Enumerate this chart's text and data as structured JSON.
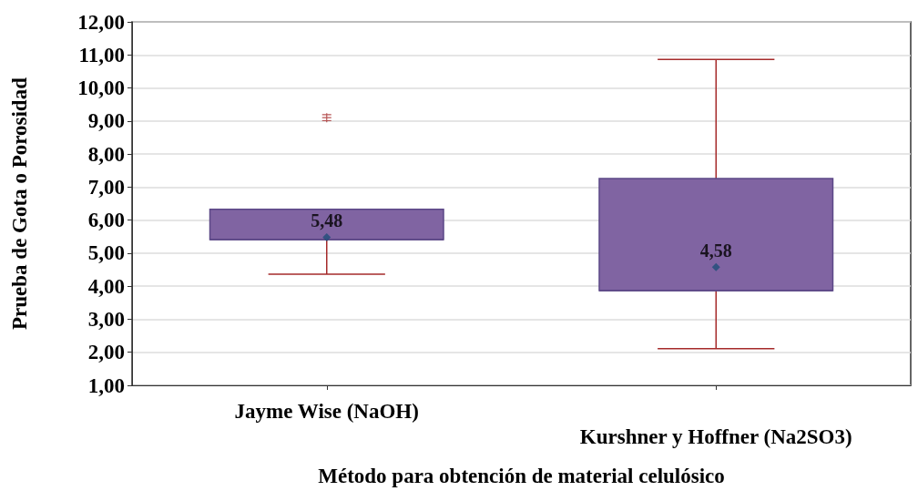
{
  "chart_data": {
    "type": "box",
    "xlabel": "Método para obtención de material celulósico",
    "ylabel": "Prueba de Gota o Porosidad",
    "categories": [
      "Jayme Wise (NaOH)",
      "Kurshner y Hoffner (Na2SO3)"
    ],
    "boxes": [
      {
        "low": 4.36,
        "q1": 5.41,
        "median": 5.41,
        "q3": 6.33,
        "high": 6.33,
        "mean": 5.48,
        "outliers": [
          9.1
        ]
      },
      {
        "low": 2.11,
        "q1": 3.87,
        "median": 3.87,
        "q3": 7.26,
        "high": 10.86,
        "mean": 4.58
      }
    ],
    "color": "#8064a2",
    "annotations": [
      "5,48",
      "4,58"
    ],
    "ylim": [
      1,
      12
    ],
    "yticks": [
      {
        "value": 1,
        "label": "1,00"
      },
      {
        "value": 2,
        "label": "2,00"
      },
      {
        "value": 3,
        "label": "3,00"
      },
      {
        "value": 4,
        "label": "4,00"
      },
      {
        "value": 5,
        "label": "5,00"
      },
      {
        "value": 6,
        "label": "6,00"
      },
      {
        "value": 7,
        "label": "7,00"
      },
      {
        "value": 8,
        "label": "8,00"
      },
      {
        "value": 9,
        "label": "9,00"
      },
      {
        "value": 10,
        "label": "10,00"
      },
      {
        "value": 11,
        "label": "11,00"
      },
      {
        "value": 12,
        "label": "12,00"
      }
    ],
    "grid": "y"
  }
}
